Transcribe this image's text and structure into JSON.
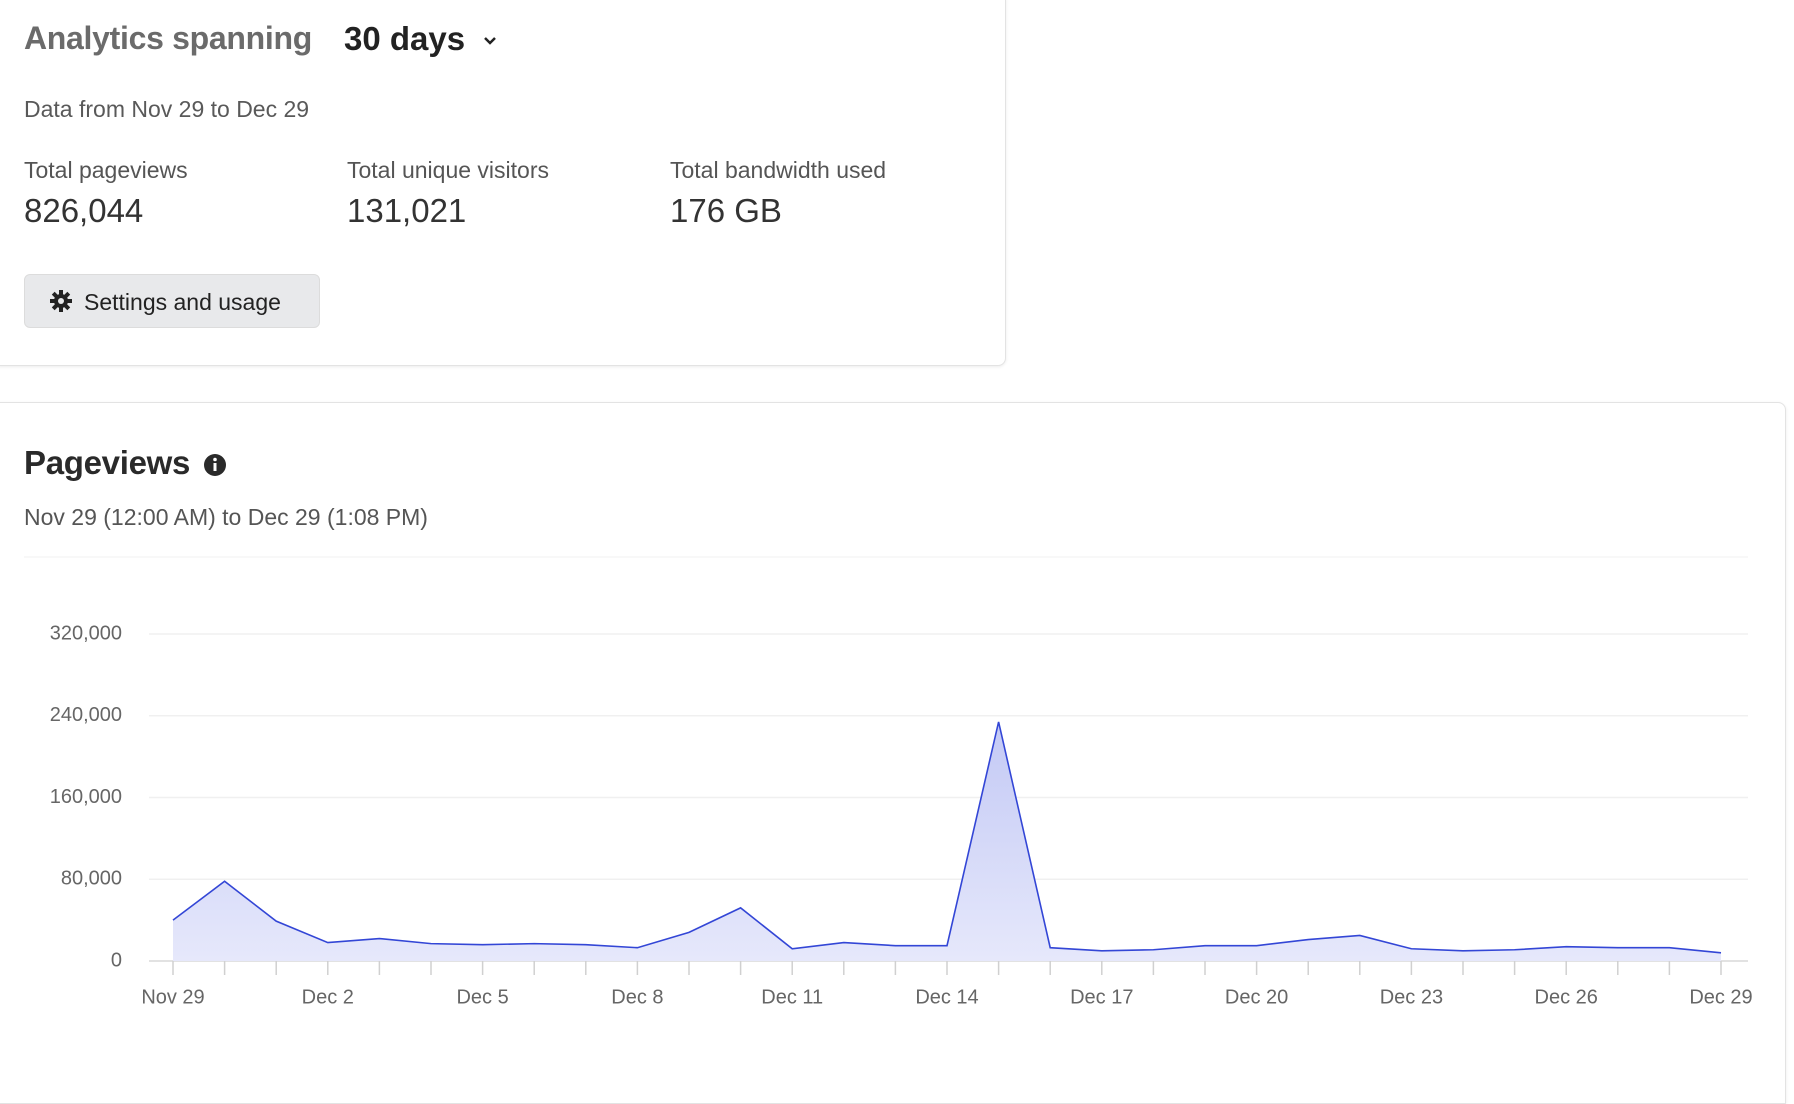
{
  "header": {
    "title": "Analytics spanning",
    "range": "30 days",
    "subtitle": "Data from Nov 29 to Dec 29"
  },
  "stats": [
    {
      "label": "Total pageviews",
      "value": "826,044"
    },
    {
      "label": "Total unique visitors",
      "value": "131,021"
    },
    {
      "label": "Total bandwidth used",
      "value": "176 GB"
    }
  ],
  "button": "Settings and usage",
  "chart_data": {
    "type": "area",
    "title": "Pageviews",
    "subtitle": "Nov 29 (12:00 AM) to Dec 29 (1:08 PM)",
    "categories": [
      "Nov 29",
      null,
      null,
      "Dec 2",
      null,
      null,
      "Dec 5",
      null,
      null,
      "Dec 8",
      null,
      null,
      "Dec 11",
      null,
      null,
      "Dec 14",
      null,
      null,
      "Dec 17",
      null,
      null,
      "Dec 20",
      null,
      null,
      "Dec 23",
      null,
      null,
      "Dec 26",
      null,
      null,
      "Dec 29"
    ],
    "values": [
      40000,
      78000,
      39000,
      18000,
      22000,
      17000,
      16000,
      17000,
      16000,
      13000,
      28000,
      52000,
      12000,
      18000,
      15000,
      15000,
      234000,
      13000,
      10000,
      11000,
      15000,
      15000,
      21000,
      25000,
      12000,
      10000,
      11000,
      14000,
      13000,
      13000,
      8000
    ],
    "color": "#3346d6",
    "ylim": [
      0,
      320000
    ],
    "yticks": [
      {
        "value": 0,
        "label": "0"
      },
      {
        "value": 80000,
        "label": "80,000"
      },
      {
        "value": 160000,
        "label": "160,000"
      },
      {
        "value": 240000,
        "label": "240,000"
      },
      {
        "value": 320000,
        "label": "320,000"
      }
    ],
    "grid": true
  }
}
